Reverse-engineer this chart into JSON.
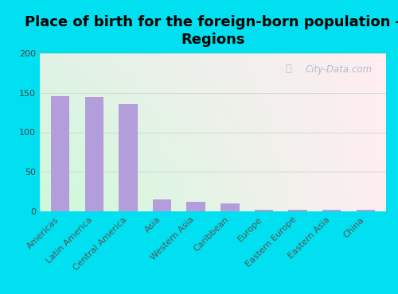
{
  "title": "Place of birth for the foreign-born population -\nRegions",
  "categories": [
    "Americas",
    "Latin America",
    "Central America",
    "Asia",
    "Western Asia",
    "Caribbean",
    "Europe",
    "Eastern Europe",
    "Eastern Asia",
    "China"
  ],
  "values": [
    146,
    145,
    136,
    15,
    12,
    10,
    2,
    2,
    2,
    2
  ],
  "bar_color": "#b39ddb",
  "background_outer": "#00e0f0",
  "ylim": [
    0,
    200
  ],
  "yticks": [
    0,
    50,
    100,
    150,
    200
  ],
  "title_fontsize": 13,
  "tick_fontsize": 8,
  "watermark": "City-Data.com",
  "gradient_colors": [
    "#c8ecd8",
    "#eaf6ee",
    "#f5fbf8",
    "#ffffff"
  ],
  "grid_color": "#ccddcc"
}
